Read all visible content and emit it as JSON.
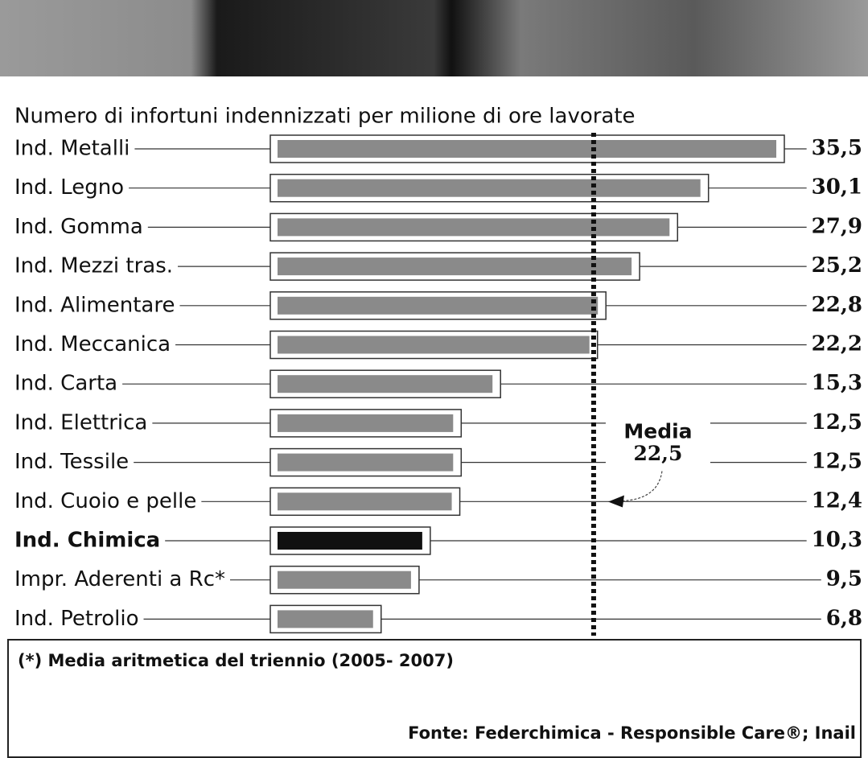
{
  "chart_data": {
    "type": "bar",
    "orientation": "horizontal",
    "subtitle": "Numero di infortuni indennizzati per milione di ore lavorate",
    "categories": [
      "Ind. Metalli",
      "Ind. Legno",
      "Ind. Gomma",
      "Ind. Mezzi tras.",
      "Ind. Alimentare",
      "Ind. Meccanica",
      "Ind. Carta",
      "Ind. Elettrica",
      "Ind. Tessile",
      "Ind. Cuoio e pelle",
      "Ind. Chimica",
      "Impr. Aderenti a Rc*",
      "Ind. Petrolio"
    ],
    "values": [
      35.5,
      30.1,
      27.9,
      25.2,
      22.8,
      22.2,
      15.3,
      12.5,
      12.5,
      12.4,
      10.3,
      9.5,
      6.8
    ],
    "value_labels": [
      "35,5",
      "30,1",
      "27,9",
      "25,2",
      "22,8",
      "22,2",
      "15,3",
      "12,5",
      "12,5",
      "12,4",
      "10,3",
      "9,5",
      "6,8"
    ],
    "colors": [
      "#8a8a8a",
      "#8a8a8a",
      "#8a8a8a",
      "#8a8a8a",
      "#8a8a8a",
      "#8a8a8a",
      "#8a8a8a",
      "#8a8a8a",
      "#8a8a8a",
      "#8a8a8a",
      "#111111",
      "#8a8a8a",
      "#8a8a8a"
    ],
    "highlight": "Ind. Chimica",
    "average": {
      "label": "Media",
      "value": 22.5,
      "value_label": "22,5"
    },
    "footnote": "(*) Media aritmetica del triennio (2005- 2007)",
    "source": "Fonte: Federchimica - Responsible Care®; Inail"
  }
}
